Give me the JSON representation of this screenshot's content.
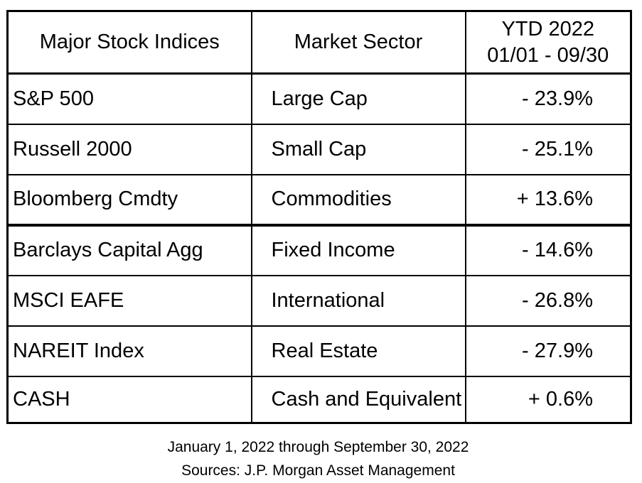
{
  "colors": {
    "background": "#ffffff",
    "border": "#000000",
    "text": "#000000"
  },
  "table": {
    "header": {
      "col1": "Major Stock Indices",
      "col2": "Market Sector",
      "col3_line1": "YTD 2022",
      "col3_line2": "01/01 - 09/30"
    },
    "rows": [
      {
        "index": "S&P 500",
        "sector": "Large Cap",
        "ytd": "- 23.9%"
      },
      {
        "index": "Russell 2000",
        "sector": "Small Cap",
        "ytd": "- 25.1%"
      },
      {
        "index": "Bloomberg Cmdty",
        "sector": "Commodities",
        "ytd": "+ 13.6%"
      },
      {
        "index": "Barclays Capital Agg",
        "sector": "Fixed Income",
        "ytd": "- 14.6%"
      },
      {
        "index": "MSCI EAFE",
        "sector": "International",
        "ytd": "- 26.8%"
      },
      {
        "index": "NAREIT Index",
        "sector": "Real Estate",
        "ytd": "- 27.9%"
      },
      {
        "index": "CASH",
        "sector": "Cash and Equivalent",
        "ytd": "+ 0.6%"
      }
    ]
  },
  "footer": {
    "line1": "January 1, 2022 through September 30, 2022",
    "line2": "Sources: J.P. Morgan Asset Management"
  },
  "chart_data": {
    "type": "table",
    "columns": [
      "Major Stock Indices",
      "Market Sector",
      "YTD 2022 01/01 - 09/30"
    ],
    "rows": [
      [
        "S&P 500",
        "Large Cap",
        "- 23.9%"
      ],
      [
        "Russell 2000",
        "Small Cap",
        "- 25.1%"
      ],
      [
        "Bloomberg Cmdty",
        "Commodities",
        "+ 13.6%"
      ],
      [
        "Barclays Capital Agg",
        "Fixed Income",
        "- 14.6%"
      ],
      [
        "MSCI EAFE",
        "International",
        "- 26.8%"
      ],
      [
        "NAREIT Index",
        "Real Estate",
        "- 27.9%"
      ],
      [
        "CASH",
        "Cash and Equivalent",
        "+ 0.6%"
      ]
    ],
    "ytd_values_pct": [
      -23.9,
      -25.1,
      13.6,
      -14.6,
      -26.8,
      -27.9,
      0.6
    ],
    "period": "January 1, 2022 through September 30, 2022",
    "source": "Sources: J.P. Morgan Asset Management"
  }
}
